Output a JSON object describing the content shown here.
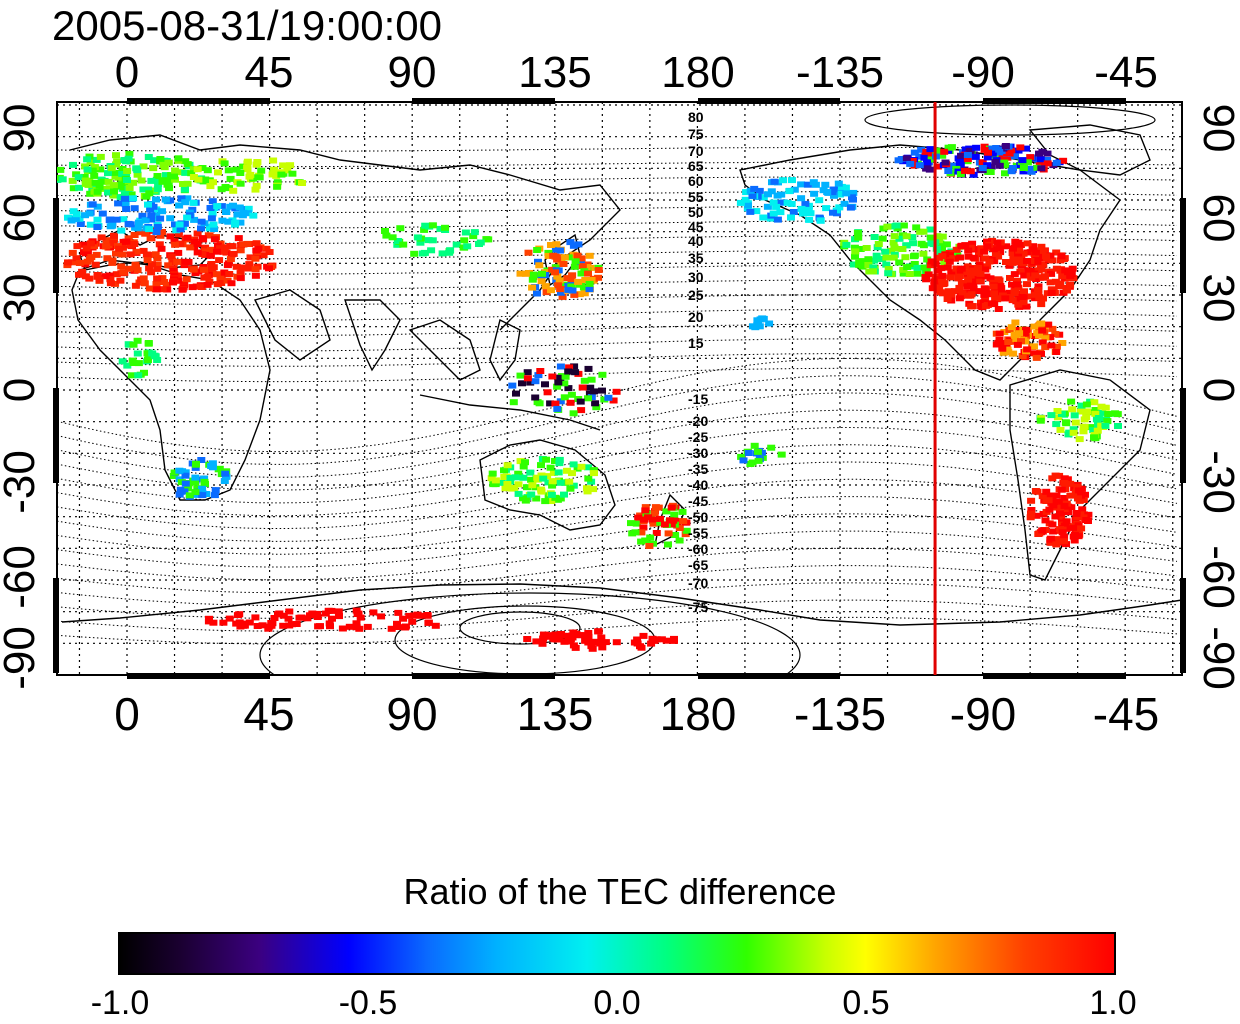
{
  "timestamp": "2005-08-31/19:00:00",
  "lon_ticks_top": [
    "0",
    "45",
    "90",
    "135",
    "180",
    "-135",
    "-90",
    "-45"
  ],
  "lon_ticks_bottom": [
    "0",
    "45",
    "90",
    "135",
    "180",
    "-135",
    "-90",
    "-45"
  ],
  "lat_ticks_left": [
    "90",
    "60",
    "30",
    "0",
    "-30",
    "-60",
    "-90"
  ],
  "lat_ticks_right": [
    "90",
    "60",
    "30",
    "0",
    "-30",
    "-60",
    "-90"
  ],
  "contour_labels_north": [
    "80",
    "75",
    "70",
    "65",
    "60",
    "55",
    "50",
    "45",
    "40",
    "35",
    "30",
    "25",
    "20",
    "15"
  ],
  "contour_labels_south": [
    "-15",
    "-20",
    "-25",
    "-30",
    "-35",
    "-40",
    "-45",
    "-50",
    "-55",
    "-60",
    "-65",
    "-70",
    "-75"
  ],
  "marker_longitude": -105,
  "colorbar": {
    "title": "Ratio of the TEC difference",
    "ticks": [
      "-1.0",
      "-0.5",
      "0.0",
      "0.5",
      "1.0"
    ],
    "range": [
      -1.0,
      1.0
    ]
  },
  "colors": {
    "marker_line": "#e00000",
    "high": "#ff0000",
    "mid": "#30ff00",
    "low": "#0000ff"
  }
}
